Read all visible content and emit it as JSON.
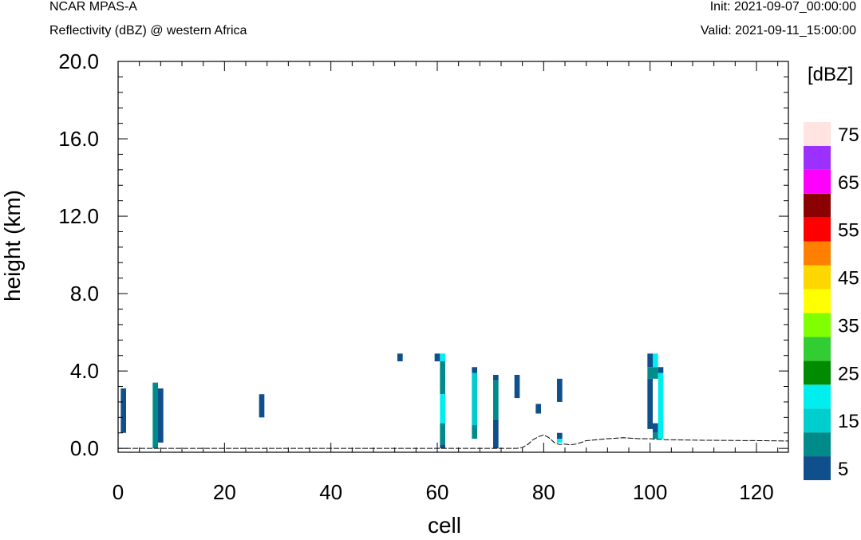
{
  "header": {
    "title": "NCAR MPAS-A",
    "subtitle": "Reflectivity (dBZ) @ western Africa",
    "init": "Init: 2021-09-07_00:00:00",
    "valid": "Valid: 2021-09-11_15:00:00"
  },
  "chart_data": {
    "type": "heatmap",
    "xlabel": "cell",
    "ylabel": "height (km)",
    "xlim": [
      0,
      126
    ],
    "ylim": [
      -0.2,
      20.0
    ],
    "x_ticks": [
      0,
      20,
      40,
      60,
      80,
      100,
      120
    ],
    "y_ticks": [
      0.0,
      4.0,
      8.0,
      12.0,
      16.0,
      20.0
    ],
    "x_tick_labels": [
      "0",
      "20",
      "40",
      "60",
      "80",
      "100",
      "120"
    ],
    "y_tick_labels": [
      "0.0",
      "4.0",
      "8.0",
      "12.0",
      "16.0",
      "20.0"
    ],
    "colorbar": {
      "units": "[dBZ]",
      "levels": [
        5,
        10,
        15,
        20,
        25,
        30,
        35,
        40,
        45,
        50,
        55,
        60,
        65,
        70,
        75
      ],
      "labels": [
        "5",
        "15",
        "25",
        "35",
        "45",
        "55",
        "65",
        "75"
      ],
      "colors": [
        "#0e4f8c",
        "#008b8b",
        "#00cdcd",
        "#00eeee",
        "#008b00",
        "#32cd32",
        "#7fff00",
        "#ffff00",
        "#ffd700",
        "#ff7f00",
        "#ff0000",
        "#8b0000",
        "#ff00ff",
        "#9b30ff",
        "#ffe4e1"
      ]
    },
    "cells": [
      {
        "x": 1,
        "y0": 0.8,
        "y1": 3.1,
        "dbz": 5
      },
      {
        "x": 7,
        "y0": 0.0,
        "y1": 3.4,
        "dbz": 10
      },
      {
        "x": 8,
        "y0": 0.3,
        "y1": 3.1,
        "dbz": 5
      },
      {
        "x": 27,
        "y0": 1.6,
        "y1": 2.8,
        "dbz": 5
      },
      {
        "x": 53,
        "y0": 4.5,
        "y1": 4.9,
        "dbz": 5
      },
      {
        "x": 60,
        "y0": 4.5,
        "y1": 4.9,
        "dbz": 5
      },
      {
        "x": 61,
        "y0": 4.5,
        "y1": 4.9,
        "dbz": 20
      },
      {
        "x": 61,
        "y0": 2.8,
        "y1": 4.5,
        "dbz": 10
      },
      {
        "x": 61,
        "y0": 1.3,
        "y1": 2.8,
        "dbz": 20
      },
      {
        "x": 61,
        "y0": 0.2,
        "y1": 1.3,
        "dbz": 10
      },
      {
        "x": 61,
        "y0": 0.0,
        "y1": 0.2,
        "dbz": 5
      },
      {
        "x": 67,
        "y0": 3.9,
        "y1": 4.2,
        "dbz": 5
      },
      {
        "x": 67,
        "y0": 1.2,
        "y1": 3.9,
        "dbz": 15
      },
      {
        "x": 67,
        "y0": 0.5,
        "y1": 1.2,
        "dbz": 10
      },
      {
        "x": 71,
        "y0": 3.5,
        "y1": 3.8,
        "dbz": 5
      },
      {
        "x": 71,
        "y0": 1.5,
        "y1": 3.5,
        "dbz": 10
      },
      {
        "x": 71,
        "y0": 0.0,
        "y1": 1.5,
        "dbz": 5
      },
      {
        "x": 75,
        "y0": 2.6,
        "y1": 3.8,
        "dbz": 5
      },
      {
        "x": 79,
        "y0": 1.8,
        "y1": 2.3,
        "dbz": 5
      },
      {
        "x": 83,
        "y0": 2.4,
        "y1": 3.6,
        "dbz": 5
      },
      {
        "x": 83,
        "y0": 0.5,
        "y1": 0.8,
        "dbz": 5
      },
      {
        "x": 83,
        "y0": 0.3,
        "y1": 0.5,
        "dbz": 20
      },
      {
        "x": 100,
        "y0": 4.2,
        "y1": 4.9,
        "dbz": 5
      },
      {
        "x": 100,
        "y0": 3.6,
        "y1": 4.2,
        "dbz": 10
      },
      {
        "x": 100,
        "y0": 1.0,
        "y1": 3.6,
        "dbz": 5
      },
      {
        "x": 101,
        "y0": 4.2,
        "y1": 4.9,
        "dbz": 20
      },
      {
        "x": 101,
        "y0": 3.6,
        "y1": 4.2,
        "dbz": 10
      },
      {
        "x": 101,
        "y0": 0.8,
        "y1": 1.3,
        "dbz": 5
      },
      {
        "x": 101,
        "y0": 0.5,
        "y1": 0.8,
        "dbz": 10
      },
      {
        "x": 102,
        "y0": 3.9,
        "y1": 4.2,
        "dbz": 5
      },
      {
        "x": 102,
        "y0": 0.5,
        "y1": 3.9,
        "dbz": 20
      }
    ],
    "terrain": {
      "x": [
        0,
        75,
        76,
        77,
        78,
        79,
        80,
        81,
        82,
        83,
        84,
        85,
        86,
        87,
        88,
        89,
        90,
        92,
        95,
        98,
        100,
        101,
        103,
        110,
        120,
        126
      ],
      "y": [
        0.0,
        0.0,
        0.05,
        0.2,
        0.45,
        0.6,
        0.7,
        0.55,
        0.3,
        0.2,
        0.22,
        0.18,
        0.22,
        0.3,
        0.4,
        0.42,
        0.45,
        0.5,
        0.55,
        0.5,
        0.5,
        0.48,
        0.45,
        0.42,
        0.4,
        0.38
      ]
    }
  }
}
